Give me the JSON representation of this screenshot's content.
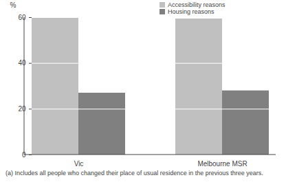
{
  "chart_data": {
    "type": "bar",
    "y_label": "%",
    "categories": [
      "Vic",
      "Melbourne MSR"
    ],
    "series": [
      {
        "name": "Accessibility reasons",
        "color": "#c0c0c0",
        "values": [
          59.7,
          59.4
        ]
      },
      {
        "name": "Housing reasons",
        "color": "#808080",
        "values": [
          27.0,
          28.0
        ]
      }
    ],
    "ylim": [
      0,
      60
    ],
    "yticks": [
      0,
      20,
      40,
      60
    ],
    "grid": true,
    "legend": "top",
    "note": "(a) Includes all people who changed their place of usual residence in the previous three years."
  }
}
